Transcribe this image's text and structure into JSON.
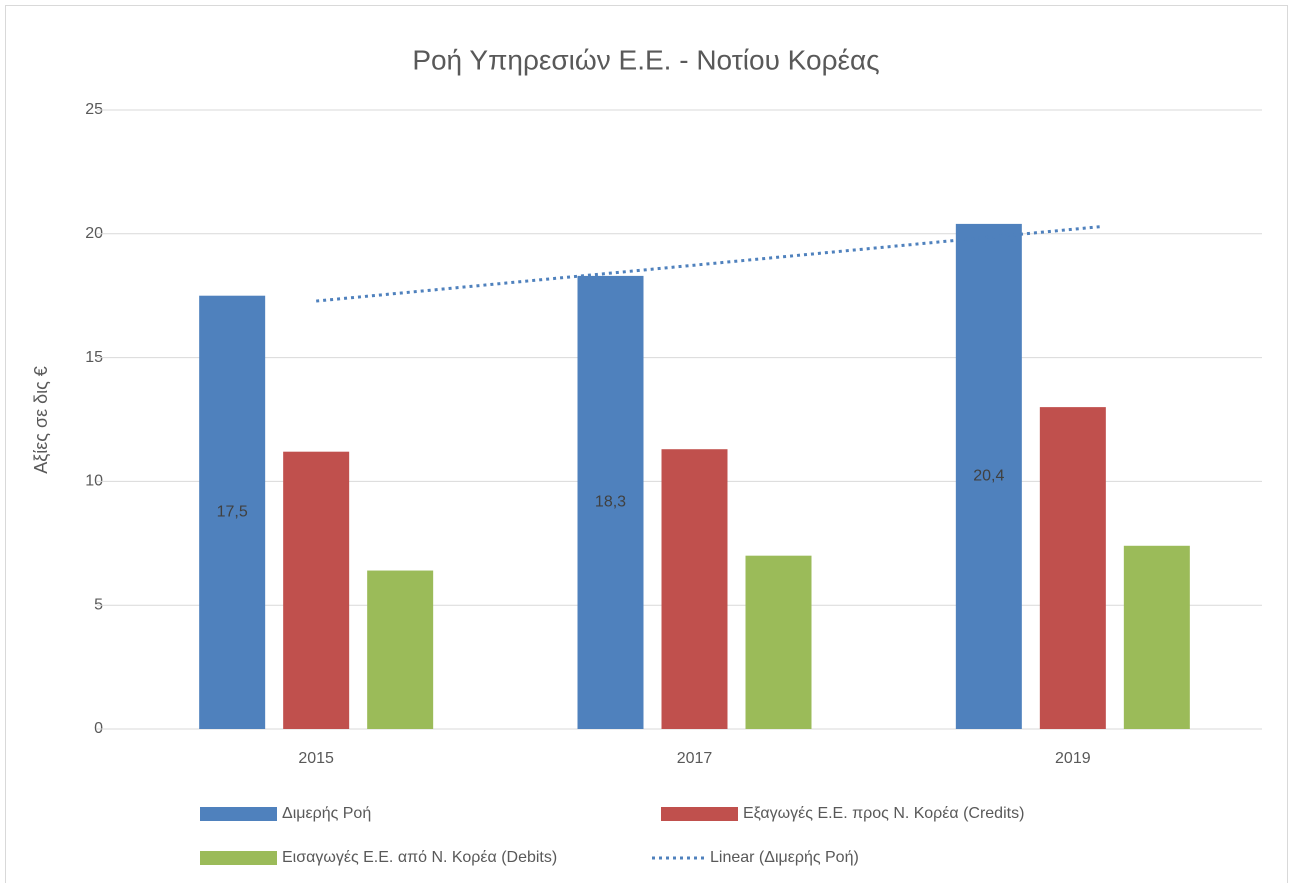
{
  "chart_data": {
    "type": "bar",
    "title": "Ροή Υπηρεσιών Ε.Ε. - Νοτίου Κορέας",
    "y_label": "Αξίες σε δις €",
    "categories": [
      "2015",
      "2017",
      "2019"
    ],
    "series": [
      {
        "name": "Διμερής Ροή",
        "color": "#4f81bd",
        "values": [
          17.5,
          18.3,
          20.4
        ],
        "value_labels": [
          "17,5",
          "18,3",
          "20,4"
        ]
      },
      {
        "name": "Εξαγωγές Ε.Ε. προς Ν. Κορέα (Credits)",
        "color": "#c0504d",
        "values": [
          11.2,
          11.3,
          13.0
        ]
      },
      {
        "name": "Εισαγωγές Ε.Ε. από Ν. Κορέα (Debits)",
        "color": "#9bbb59",
        "values": [
          6.4,
          7.0,
          7.4
        ]
      }
    ],
    "trendline": {
      "name": "Linear (Διμερής Ροή)",
      "color": "#4f81bd",
      "style": "dotted"
    },
    "ylim": [
      0,
      25
    ],
    "yticks": [
      0,
      5,
      10,
      15,
      20,
      25
    ],
    "grid": true,
    "legend": "bottom"
  }
}
